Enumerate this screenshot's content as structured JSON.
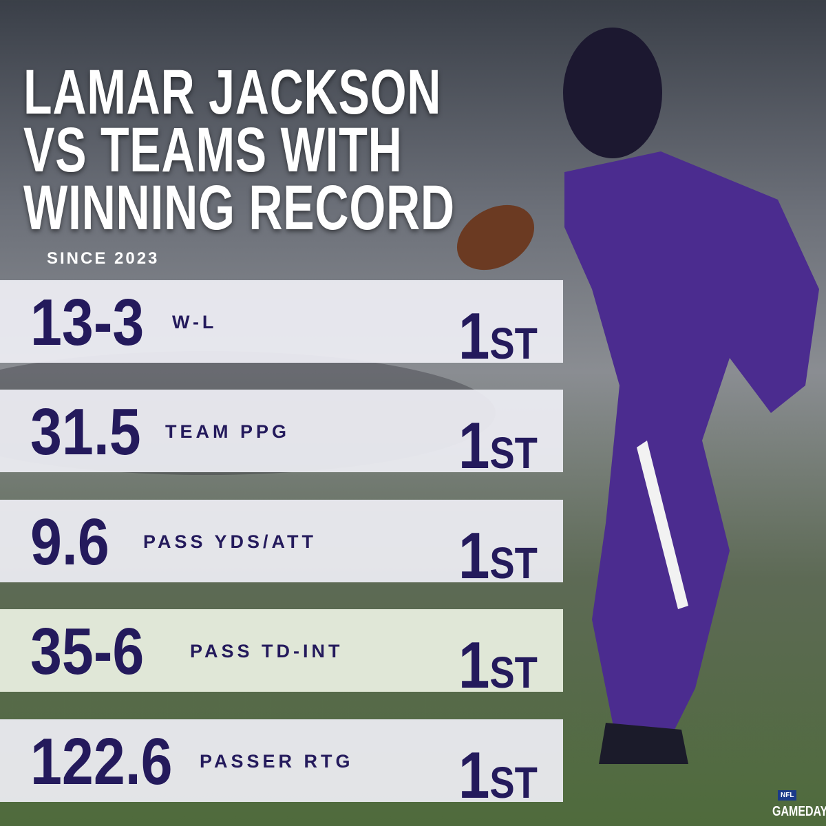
{
  "header": {
    "title_lines": [
      "LAMAR JACKSON",
      "VS TEAMS WITH",
      "WINNING RECORD"
    ],
    "subtitle": "SINCE 2023"
  },
  "rows": [
    {
      "value": "13-3",
      "label": "W-L",
      "rank": "1ST"
    },
    {
      "value": "31.5",
      "label": "TEAM PPG",
      "rank": "1ST"
    },
    {
      "value": "9.6",
      "label": "PASS YDS/ATT",
      "rank": "1ST"
    },
    {
      "value": "35-6",
      "label": "PASS TD-INT",
      "rank": "1ST"
    },
    {
      "value": "122.6",
      "label": "PASSER RTG",
      "rank": "1ST"
    }
  ],
  "logo": {
    "league": "NFL",
    "show": "GAMEDAY"
  }
}
